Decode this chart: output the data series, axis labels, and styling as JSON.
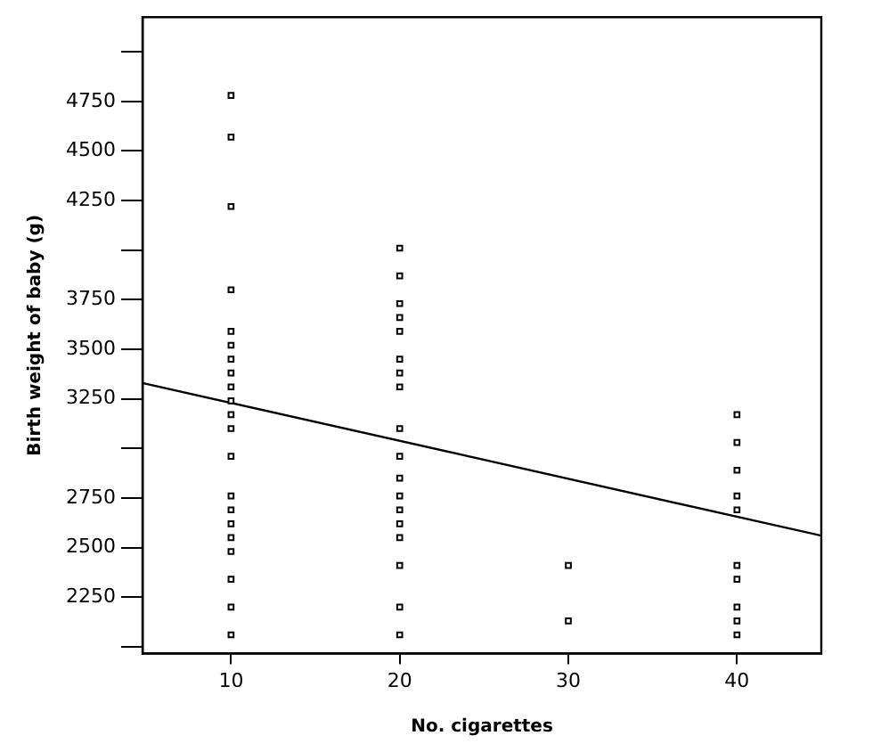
{
  "chart_data": {
    "type": "scatter",
    "xlabel": "No. cigarettes",
    "ylabel": "Birth weight of baby (g)",
    "xlim": [
      4.75,
      45
    ],
    "ylim": [
      1965,
      5175
    ],
    "xticks": [
      10,
      20,
      30,
      40
    ],
    "yticks": [
      {
        "value": 2000,
        "label": null
      },
      2250,
      2500,
      2750,
      {
        "value": 3000,
        "label": null
      },
      3250,
      3500,
      3750,
      {
        "value": 4000,
        "label": null
      },
      4250,
      4500,
      4750,
      {
        "value": 5000,
        "label": null
      }
    ],
    "grid": false,
    "legend": false,
    "marker": "square",
    "series": [
      {
        "color": "#000000",
        "x": [
          10,
          10,
          10,
          10,
          10,
          10,
          10,
          10,
          10,
          10,
          10,
          10,
          10,
          10,
          10,
          10,
          10,
          10,
          10,
          10,
          10,
          20,
          20,
          20,
          20,
          20,
          20,
          20,
          20,
          20,
          20,
          20,
          20,
          20,
          20,
          20,
          20,
          20,
          20,
          30,
          30,
          40,
          40,
          40,
          40,
          40,
          40,
          40,
          40,
          40,
          40
        ],
        "values": [
          4780,
          4570,
          4220,
          3800,
          3590,
          3520,
          3450,
          3380,
          3310,
          3240,
          3170,
          3100,
          2960,
          2760,
          2690,
          2620,
          2550,
          2480,
          2340,
          2200,
          2060,
          4010,
          3870,
          3730,
          3660,
          3590,
          3450,
          3380,
          3310,
          3100,
          2960,
          2850,
          2760,
          2690,
          2620,
          2550,
          2410,
          2200,
          2060,
          2410,
          2130,
          3170,
          3030,
          2890,
          2760,
          2690,
          2410,
          2340,
          2200,
          2130,
          2060
        ]
      },
      {
        "type": "line",
        "color": "#000000",
        "marker": "none",
        "line_style": "solid",
        "x": [
          4.75,
          45
        ],
        "values": [
          3330,
          2560
        ]
      }
    ]
  }
}
